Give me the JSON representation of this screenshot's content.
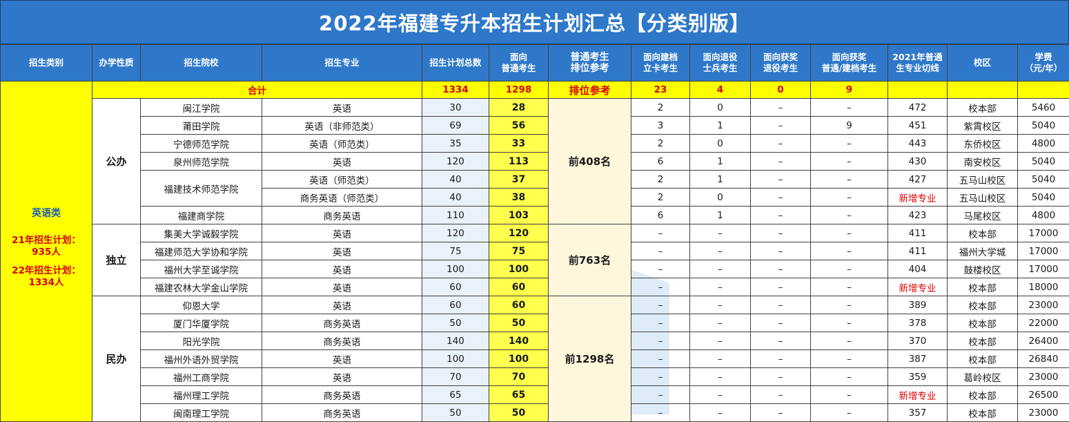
{
  "title": "2022年福建专升本招生计划汇总【分类别版】",
  "headers": {
    "category": "招生类别",
    "nature": "办学性质",
    "school": "招生院校",
    "major": "招生专业",
    "total_plan": "招生计划总数",
    "general_l1": "面向",
    "general_l2": "普通考生",
    "rank_l1": "普通考生",
    "rank_l2": "排位参考",
    "card_l1": "面向建档",
    "card_l2": "立卡考生",
    "veteran_l1": "面向退役",
    "veteran_l2": "士兵考生",
    "award_vet_l1": "面向获奖",
    "award_vet_l2": "退役考生",
    "award_gen_l1": "面向获奖",
    "award_gen_l2": "普通/建档考生",
    "cutoff_l1": "2021年普通",
    "cutoff_l2": "生专业切线",
    "campus": "校区",
    "fee_l1": "学费",
    "fee_l2": "（元/年）"
  },
  "total_row": {
    "label": "合计",
    "total_plan": "1334",
    "general": "1298",
    "rank": "排位参考",
    "card": "23",
    "veteran": "4",
    "award_vet": "0",
    "award_gen": "9"
  },
  "category": {
    "name": "英语类",
    "plan21_l1": "21年招生计划：",
    "plan21_l2": "935人",
    "plan22_l1": "22年招生计划：",
    "plan22_l2": "1334人"
  },
  "groups": [
    {
      "nature": "公办",
      "rank": "前408名"
    },
    {
      "nature": "独立",
      "rank": "前763名"
    },
    {
      "nature": "民办",
      "rank": "前1298名"
    }
  ],
  "rows": [
    {
      "school": "闽江学院",
      "major": "英语",
      "total": "30",
      "general": "28",
      "card": "2",
      "veteran": "0",
      "award_vet": "–",
      "award_gen": "–",
      "cutoff": "472",
      "campus": "校本部",
      "fee": "5460"
    },
    {
      "school": "莆田学院",
      "major": "英语（非师范类）",
      "total": "69",
      "general": "56",
      "card": "3",
      "veteran": "1",
      "award_vet": "–",
      "award_gen": "9",
      "cutoff": "451",
      "campus": "紫霄校区",
      "fee": "5040"
    },
    {
      "school": "宁德师范学院",
      "major": "英语（师范类）",
      "total": "35",
      "general": "33",
      "card": "2",
      "veteran": "0",
      "award_vet": "–",
      "award_gen": "–",
      "cutoff": "443",
      "campus": "东侨校区",
      "fee": "4800"
    },
    {
      "school": "泉州师范学院",
      "major": "英语",
      "total": "120",
      "general": "113",
      "card": "6",
      "veteran": "1",
      "award_vet": "–",
      "award_gen": "–",
      "cutoff": "430",
      "campus": "南安校区",
      "fee": "5040"
    },
    {
      "school": "福建技术师范学院",
      "major": "英语（师范类）",
      "total": "40",
      "general": "37",
      "card": "2",
      "veteran": "1",
      "award_vet": "–",
      "award_gen": "–",
      "cutoff": "427",
      "campus": "五马山校区",
      "fee": "5040"
    },
    {
      "school": "",
      "major": "商务英语（师范类）",
      "total": "40",
      "general": "38",
      "card": "2",
      "veteran": "0",
      "award_vet": "–",
      "award_gen": "–",
      "cutoff": "新增专业",
      "campus": "五马山校区",
      "fee": "5040"
    },
    {
      "school": "福建商学院",
      "major": "商务英语",
      "total": "110",
      "general": "103",
      "card": "6",
      "veteran": "1",
      "award_vet": "–",
      "award_gen": "–",
      "cutoff": "423",
      "campus": "马尾校区",
      "fee": "4800"
    },
    {
      "school": "集美大学诚毅学院",
      "major": "英语",
      "total": "120",
      "general": "120",
      "card": "–",
      "veteran": "–",
      "award_vet": "–",
      "award_gen": "–",
      "cutoff": "411",
      "campus": "校本部",
      "fee": "17000"
    },
    {
      "school": "福建师范大学协和学院",
      "major": "英语",
      "total": "75",
      "general": "75",
      "card": "–",
      "veteran": "–",
      "award_vet": "–",
      "award_gen": "–",
      "cutoff": "411",
      "campus": "福州大学城",
      "fee": "17000"
    },
    {
      "school": "福州大学至诚学院",
      "major": "英语",
      "total": "100",
      "general": "100",
      "card": "–",
      "veteran": "–",
      "award_vet": "–",
      "award_gen": "–",
      "cutoff": "404",
      "campus": "鼓楼校区",
      "fee": "17000"
    },
    {
      "school": "福建农林大学金山学院",
      "major": "英语",
      "total": "60",
      "general": "60",
      "card": "–",
      "veteran": "–",
      "award_vet": "–",
      "award_gen": "–",
      "cutoff": "新增专业",
      "campus": "校本部",
      "fee": "18000"
    },
    {
      "school": "仰恩大学",
      "major": "英语",
      "total": "60",
      "general": "60",
      "card": "–",
      "veteran": "–",
      "award_vet": "–",
      "award_gen": "–",
      "cutoff": "389",
      "campus": "校本部",
      "fee": "23000"
    },
    {
      "school": "厦门华厦学院",
      "major": "商务英语",
      "total": "50",
      "general": "50",
      "card": "–",
      "veteran": "–",
      "award_vet": "–",
      "award_gen": "–",
      "cutoff": "378",
      "campus": "校本部",
      "fee": "22000"
    },
    {
      "school": "阳光学院",
      "major": "商务英语",
      "total": "140",
      "general": "140",
      "card": "–",
      "veteran": "–",
      "award_vet": "–",
      "award_gen": "–",
      "cutoff": "370",
      "campus": "校本部",
      "fee": "26400"
    },
    {
      "school": "福州外语外贸学院",
      "major": "英语",
      "total": "100",
      "general": "100",
      "card": "–",
      "veteran": "–",
      "award_vet": "–",
      "award_gen": "–",
      "cutoff": "387",
      "campus": "校本部",
      "fee": "26840"
    },
    {
      "school": "福州工商学院",
      "major": "英语",
      "total": "70",
      "general": "70",
      "card": "–",
      "veteran": "–",
      "award_vet": "–",
      "award_gen": "–",
      "cutoff": "359",
      "campus": "葛岭校区",
      "fee": "23000"
    },
    {
      "school": "福州理工学院",
      "major": "商务英语",
      "total": "65",
      "general": "65",
      "card": "–",
      "veteran": "–",
      "award_vet": "–",
      "award_gen": "–",
      "cutoff": "新增专业",
      "campus": "校本部",
      "fee": "26500"
    },
    {
      "school": "闽南理工学院",
      "major": "商务英语",
      "total": "50",
      "general": "50",
      "card": "–",
      "veteran": "–",
      "award_vet": "–",
      "award_gen": "–",
      "cutoff": "357",
      "campus": "校本部",
      "fee": "23000"
    }
  ],
  "colors": {
    "header_blue": "#2f78c9",
    "total_row_yellow": "#ffff00",
    "total_row_text": "#d40000",
    "new_major_red": "#e00000",
    "category_bg": "#dbe8f4"
  }
}
